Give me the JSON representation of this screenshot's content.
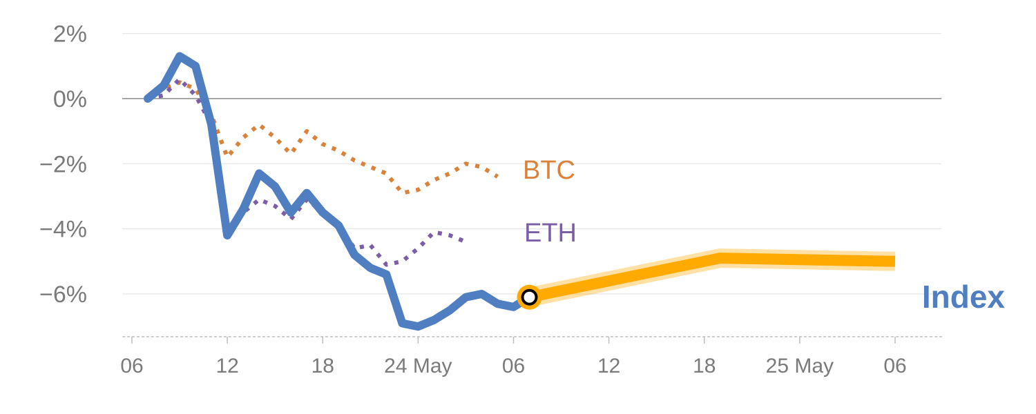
{
  "chart_data": {
    "type": "line",
    "title": "",
    "xlabel": "",
    "ylabel": "",
    "y_unit": "%",
    "ylim": [
      -7.3,
      2.1
    ],
    "y_ticks": [
      {
        "value": 2,
        "label": "2%"
      },
      {
        "value": 0,
        "label": "0%"
      },
      {
        "value": -2,
        "label": "−2%"
      },
      {
        "value": -4,
        "label": "−4%"
      },
      {
        "value": -6,
        "label": "−6%"
      }
    ],
    "grid": true,
    "x_ticks": [
      {
        "x": 0,
        "label": "06"
      },
      {
        "x": 6,
        "label": "12"
      },
      {
        "x": 12,
        "label": "18"
      },
      {
        "x": 18,
        "label": "24 May"
      },
      {
        "x": 24,
        "label": "06"
      },
      {
        "x": 30,
        "label": "12"
      },
      {
        "x": 36,
        "label": "18"
      },
      {
        "x": 42,
        "label": "25 May"
      },
      {
        "x": 48,
        "label": "06"
      }
    ],
    "series": [
      {
        "name": "BTC",
        "color": "#d9823b",
        "style": "dotted",
        "points": [
          [
            1,
            0
          ],
          [
            2,
            0.3
          ],
          [
            3,
            0.5
          ],
          [
            4,
            0.3
          ],
          [
            5,
            -0.5
          ],
          [
            6,
            -1.8
          ],
          [
            7,
            -1.2
          ],
          [
            8,
            -0.8
          ],
          [
            9,
            -1.2
          ],
          [
            10,
            -1.7
          ],
          [
            11,
            -1.0
          ],
          [
            12,
            -1.4
          ],
          [
            13,
            -1.6
          ],
          [
            14,
            -1.9
          ],
          [
            15,
            -2.1
          ],
          [
            16,
            -2.3
          ],
          [
            17,
            -2.9
          ],
          [
            18,
            -2.8
          ],
          [
            19,
            -2.5
          ],
          [
            20,
            -2.3
          ],
          [
            21,
            -2.0
          ],
          [
            22,
            -2.1
          ],
          [
            23,
            -2.4
          ]
        ]
      },
      {
        "name": "ETH",
        "color": "#7b5ea7",
        "style": "dotted",
        "points": [
          [
            1,
            0
          ],
          [
            2,
            0.1
          ],
          [
            3,
            0.6
          ],
          [
            4,
            0.1
          ],
          [
            5,
            -0.8
          ],
          [
            6,
            -4.1
          ],
          [
            7,
            -3.5
          ],
          [
            8,
            -3.1
          ],
          [
            9,
            -3.3
          ],
          [
            10,
            -3.7
          ],
          [
            11,
            -3.1
          ],
          [
            12,
            -3.5
          ],
          [
            13,
            -3.9
          ],
          [
            14,
            -4.6
          ],
          [
            15,
            -4.5
          ],
          [
            16,
            -5.1
          ],
          [
            17,
            -5.0
          ],
          [
            18,
            -4.6
          ],
          [
            19,
            -4.1
          ],
          [
            20,
            -4.2
          ],
          [
            21,
            -4.4
          ]
        ]
      },
      {
        "name": "Index",
        "color": "#4f7fc0",
        "style": "solid",
        "points": [
          [
            1,
            0
          ],
          [
            2,
            0.4
          ],
          [
            3,
            1.3
          ],
          [
            4,
            1.0
          ],
          [
            5,
            -0.8
          ],
          [
            6,
            -4.2
          ],
          [
            7,
            -3.4
          ],
          [
            8,
            -2.3
          ],
          [
            9,
            -2.7
          ],
          [
            10,
            -3.5
          ],
          [
            11,
            -2.9
          ],
          [
            12,
            -3.5
          ],
          [
            13,
            -3.9
          ],
          [
            14,
            -4.8
          ],
          [
            15,
            -5.2
          ],
          [
            16,
            -5.4
          ],
          [
            17,
            -6.9
          ],
          [
            18,
            -7.0
          ],
          [
            19,
            -6.8
          ],
          [
            20,
            -6.5
          ],
          [
            21,
            -6.1
          ],
          [
            22,
            -6.0
          ],
          [
            23,
            -6.3
          ],
          [
            24,
            -6.4
          ],
          [
            25,
            -6.1
          ]
        ]
      },
      {
        "name": "",
        "color": "#ffaa00",
        "style": "thick",
        "points": [
          [
            25,
            -6.1
          ],
          [
            37,
            -4.9
          ],
          [
            48,
            -5.0
          ]
        ]
      }
    ],
    "marker": {
      "x": 25,
      "y": -6.1,
      "fill": "#ffffff",
      "stroke": "#000000",
      "ring": "#ffaa00"
    },
    "labels": {
      "btc": {
        "text": "BTC",
        "color": "#d9823b"
      },
      "eth": {
        "text": "ETH",
        "color": "#7b5ea7"
      },
      "index": {
        "text": "Index",
        "color": "#4f7fc0"
      }
    }
  }
}
